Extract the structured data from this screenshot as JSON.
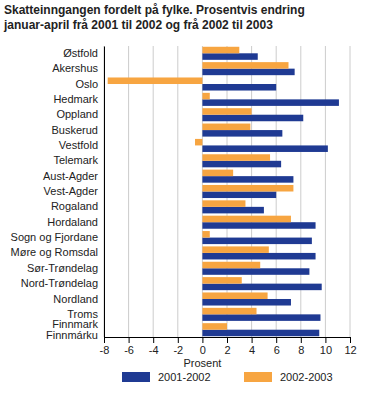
{
  "chart_data": {
    "type": "bar",
    "orientation": "horizontal",
    "title": "Skatteinngangen fordelt på fylke. Prosentvis endring\njanuar-april frå 2001 til 2002 og frå 2002 til 2003",
    "x_label": "Prosent",
    "categories": [
      "Østfold",
      "Akershus",
      "Oslo",
      "Hedmark",
      "Oppland",
      "Buskerud",
      "Vestfold",
      "Telemark",
      "Aust-Agder",
      "Vest-Agder",
      "Rogaland",
      "Hordaland",
      "Sogn og Fjordane",
      "Møre og Romsdal",
      "Sør-Trøndelag",
      "Nord-Trøndelag",
      "Nordland",
      "Troms",
      "Finnmark\nFinnmárku"
    ],
    "series": [
      {
        "name": "2001-2002",
        "color": "#1f3a93",
        "values": [
          4.5,
          7.5,
          6.0,
          11.1,
          8.2,
          6.5,
          10.2,
          6.4,
          7.4,
          6.0,
          5.0,
          9.2,
          8.9,
          9.2,
          8.7,
          9.7,
          7.2,
          9.6,
          9.5
        ]
      },
      {
        "name": "2002-2003",
        "color": "#f7a541",
        "values": [
          3.0,
          7.0,
          -7.7,
          0.6,
          4.0,
          3.9,
          -0.6,
          5.5,
          2.5,
          7.4,
          3.5,
          7.2,
          0.6,
          5.4,
          4.7,
          3.2,
          5.3,
          4.4,
          2.0
        ]
      }
    ],
    "xlim": [
      -8,
      12
    ],
    "xticks": [
      -8,
      -6,
      -4,
      -2,
      0,
      2,
      4,
      6,
      8,
      10,
      12
    ],
    "grid": true,
    "legend": "bottom"
  }
}
